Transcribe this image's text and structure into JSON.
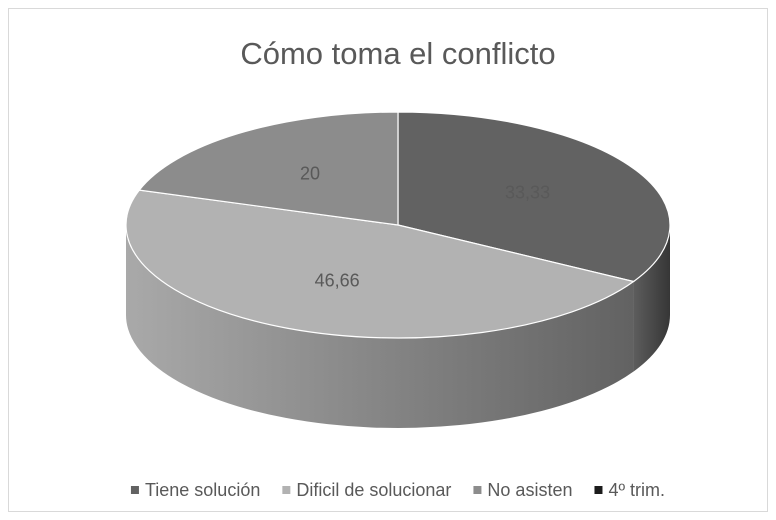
{
  "chart_data": {
    "type": "pie3d",
    "title": "Cómo toma el conflicto",
    "categories": [
      "Tiene solución",
      "Dificil de solucionar",
      "No asisten",
      "4º trim."
    ],
    "values": [
      33.33,
      46.66,
      20,
      0
    ],
    "value_labels": [
      "33,33",
      "46,66",
      "20",
      null
    ],
    "colors": [
      "#626262",
      "#b2b2b2",
      "#8c8c8c",
      "#1c1c1c"
    ],
    "legend": "bottom"
  }
}
